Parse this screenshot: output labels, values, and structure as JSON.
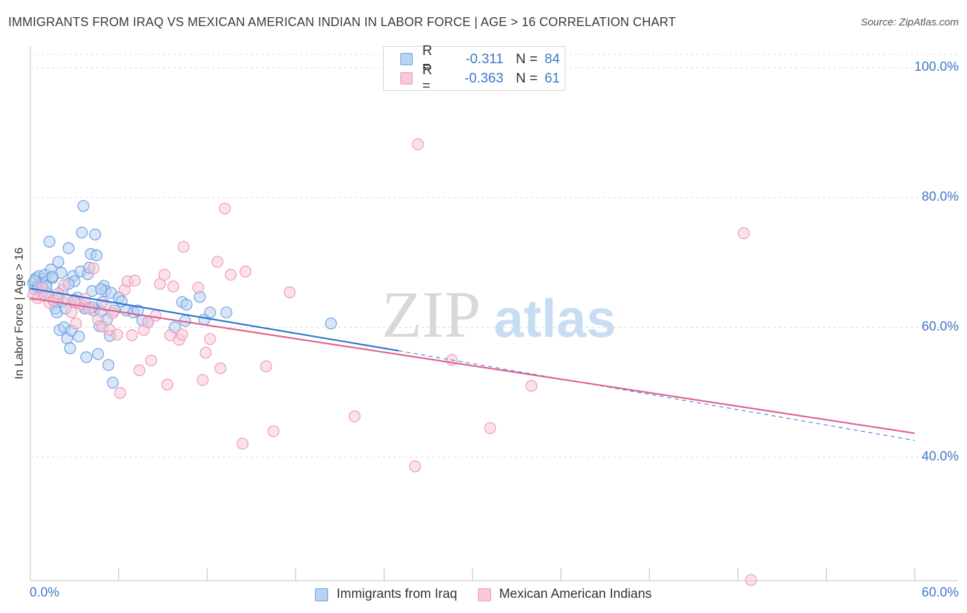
{
  "header": {
    "title": "IMMIGRANTS FROM IRAQ VS MEXICAN AMERICAN INDIAN IN LABOR FORCE | AGE > 16 CORRELATION CHART",
    "source": "Source: ZipAtlas.com"
  },
  "watermark": {
    "zip": "ZIP",
    "atlas": "atlas"
  },
  "legend": {
    "rows": [
      {
        "r_label": "R =",
        "r_value": "-0.311",
        "n_label": "N =",
        "n_value": "84"
      },
      {
        "r_label": "R =",
        "r_value": "-0.363",
        "n_label": "N =",
        "n_value": "61"
      }
    ]
  },
  "bottom_legend": {
    "series1": "Immigrants from Iraq",
    "series2": "Mexican American Indians"
  },
  "colors": {
    "blue_fill": "#b8d2f3",
    "blue_stroke": "#6ea0e0",
    "blue_line": "#2a72d0",
    "pink_fill": "#f8c8d8",
    "pink_stroke": "#ee9ab4",
    "pink_line": "#e0608c",
    "tick_text": "#3f78c9",
    "grid": "#dcdcdc"
  },
  "chart_data": {
    "type": "scatter",
    "ylabel": "In Labor Force | Age > 16",
    "xlim": [
      0,
      60
    ],
    "ylim": [
      21,
      103
    ],
    "x_tick_labels": [
      "0.0%",
      "60.0%"
    ],
    "y_ticks": [
      40,
      60,
      80,
      100
    ],
    "y_tick_labels": [
      "40.0%",
      "60.0%",
      "80.0%",
      "100.0%"
    ],
    "grid": true,
    "series": [
      {
        "name": "Immigrants from Iraq",
        "color": "#6ea0e0",
        "points": [
          [
            0.2,
            66.8
          ],
          [
            0.3,
            65.9
          ],
          [
            0.4,
            67.6
          ],
          [
            0.5,
            66.2
          ],
          [
            0.6,
            67.9
          ],
          [
            0.7,
            65.5
          ],
          [
            0.8,
            66.9
          ],
          [
            0.9,
            67.4
          ],
          [
            1.0,
            68.1
          ],
          [
            1.1,
            67.0
          ],
          [
            1.2,
            65.2
          ],
          [
            1.3,
            73.2
          ],
          [
            1.4,
            68.9
          ],
          [
            1.5,
            67.6
          ],
          [
            1.6,
            64.1
          ],
          [
            1.7,
            62.9
          ],
          [
            1.8,
            62.3
          ],
          [
            1.9,
            70.1
          ],
          [
            2.0,
            59.6
          ],
          [
            2.1,
            68.4
          ],
          [
            2.2,
            63.9
          ],
          [
            2.3,
            60.0
          ],
          [
            2.4,
            62.9
          ],
          [
            2.5,
            58.3
          ],
          [
            2.6,
            72.2
          ],
          [
            2.7,
            56.8
          ],
          [
            2.8,
            59.5
          ],
          [
            2.9,
            67.9
          ],
          [
            3.0,
            67.1
          ],
          [
            3.1,
            63.8
          ],
          [
            3.2,
            64.6
          ],
          [
            3.3,
            58.6
          ],
          [
            3.4,
            68.6
          ],
          [
            3.5,
            74.6
          ],
          [
            3.6,
            78.7
          ],
          [
            3.7,
            63.2
          ],
          [
            3.8,
            55.4
          ],
          [
            3.9,
            68.2
          ],
          [
            4.0,
            69.2
          ],
          [
            4.1,
            71.3
          ],
          [
            4.2,
            65.6
          ],
          [
            4.3,
            62.6
          ],
          [
            4.4,
            74.3
          ],
          [
            4.5,
            71.1
          ],
          [
            4.6,
            55.9
          ],
          [
            4.7,
            60.2
          ],
          [
            4.8,
            62.4
          ],
          [
            4.9,
            63.9
          ],
          [
            5.0,
            66.4
          ],
          [
            5.1,
            65.6
          ],
          [
            5.2,
            61.2
          ],
          [
            5.3,
            54.2
          ],
          [
            5.4,
            58.7
          ],
          [
            5.5,
            65.3
          ],
          [
            5.6,
            51.5
          ],
          [
            5.7,
            62.6
          ],
          [
            6.0,
            64.6
          ],
          [
            6.2,
            64.0
          ],
          [
            6.5,
            62.6
          ],
          [
            7.0,
            62.3
          ],
          [
            7.3,
            62.6
          ],
          [
            7.6,
            61.1
          ],
          [
            8.0,
            60.8
          ],
          [
            9.8,
            60.0
          ],
          [
            10.3,
            63.9
          ],
          [
            10.5,
            61.0
          ],
          [
            10.6,
            63.5
          ],
          [
            11.5,
            64.7
          ],
          [
            11.8,
            61.2
          ],
          [
            12.2,
            62.3
          ],
          [
            13.3,
            62.3
          ],
          [
            20.4,
            60.6
          ],
          [
            0.5,
            66.0
          ],
          [
            1.5,
            67.8
          ],
          [
            2.2,
            65.8
          ],
          [
            3.0,
            64.2
          ],
          [
            4.2,
            63.1
          ],
          [
            0.8,
            65.4
          ],
          [
            2.6,
            66.7
          ],
          [
            1.9,
            64.6
          ],
          [
            3.7,
            62.9
          ],
          [
            4.8,
            65.9
          ],
          [
            0.3,
            67.2
          ],
          [
            1.1,
            66.3
          ]
        ]
      },
      {
        "name": "Mexican American Indians",
        "color": "#ee9ab4",
        "points": [
          [
            0.2,
            65.0
          ],
          [
            0.5,
            64.5
          ],
          [
            0.8,
            66.1
          ],
          [
            1.0,
            64.9
          ],
          [
            1.3,
            63.8
          ],
          [
            1.6,
            64.2
          ],
          [
            1.9,
            65.2
          ],
          [
            2.3,
            66.5
          ],
          [
            2.5,
            64.3
          ],
          [
            2.8,
            62.3
          ],
          [
            3.1,
            60.6
          ],
          [
            3.4,
            63.6
          ],
          [
            3.7,
            64.4
          ],
          [
            4.0,
            62.9
          ],
          [
            4.3,
            69.1
          ],
          [
            4.6,
            61.2
          ],
          [
            4.9,
            60.1
          ],
          [
            5.1,
            63.4
          ],
          [
            5.4,
            59.6
          ],
          [
            5.6,
            62.2
          ],
          [
            5.9,
            58.9
          ],
          [
            6.1,
            49.9
          ],
          [
            6.4,
            65.8
          ],
          [
            6.6,
            67.1
          ],
          [
            6.9,
            58.8
          ],
          [
            7.1,
            67.2
          ],
          [
            7.4,
            53.4
          ],
          [
            7.7,
            59.6
          ],
          [
            8.0,
            60.8
          ],
          [
            8.2,
            54.9
          ],
          [
            8.5,
            61.8
          ],
          [
            8.8,
            66.7
          ],
          [
            9.1,
            68.1
          ],
          [
            9.3,
            51.2
          ],
          [
            9.5,
            58.8
          ],
          [
            9.7,
            66.3
          ],
          [
            10.1,
            58.1
          ],
          [
            10.3,
            58.9
          ],
          [
            10.4,
            72.4
          ],
          [
            11.4,
            66.1
          ],
          [
            11.7,
            51.9
          ],
          [
            11.9,
            56.1
          ],
          [
            12.2,
            58.2
          ],
          [
            12.7,
            70.1
          ],
          [
            12.9,
            53.7
          ],
          [
            13.2,
            78.3
          ],
          [
            13.6,
            68.1
          ],
          [
            14.4,
            42.1
          ],
          [
            14.6,
            68.6
          ],
          [
            16.0,
            54.0
          ],
          [
            16.5,
            44.0
          ],
          [
            17.6,
            65.4
          ],
          [
            22.0,
            46.3
          ],
          [
            26.1,
            38.6
          ],
          [
            26.3,
            88.2
          ],
          [
            28.6,
            55.0
          ],
          [
            31.2,
            44.5
          ],
          [
            34.0,
            51.0
          ],
          [
            48.4,
            74.5
          ],
          [
            48.9,
            21.1
          ],
          [
            3.0,
            64.0
          ]
        ]
      }
    ],
    "trendlines": [
      {
        "series": "Immigrants from Iraq",
        "x": [
          0,
          25
        ],
        "y": [
          66.0,
          56.4
        ],
        "style": "solid"
      },
      {
        "series": "Immigrants from Iraq",
        "x": [
          25,
          60
        ],
        "y": [
          56.4,
          42.6
        ],
        "style": "dashed"
      },
      {
        "series": "Mexican American Indians",
        "x": [
          0,
          60
        ],
        "y": [
          64.5,
          43.7
        ],
        "style": "solid"
      }
    ]
  }
}
